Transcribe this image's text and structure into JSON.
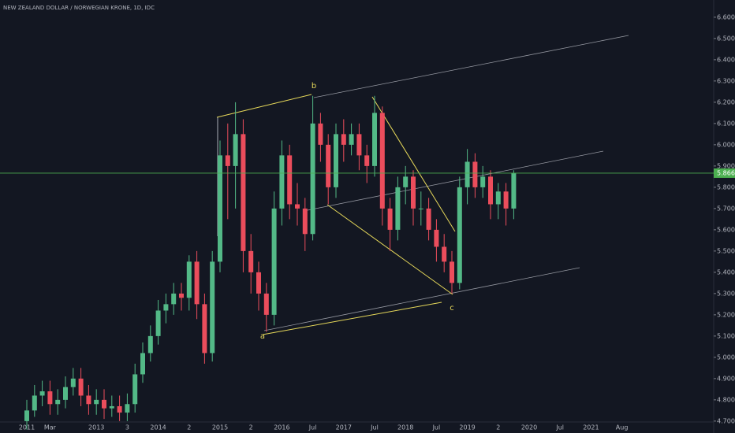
{
  "chart_data": {
    "type": "candlestick",
    "title": "NEW ZEALAND DOLLAR / NORWEGIAN KRONE, 1D, IDC",
    "annotations": [
      "a",
      "b",
      "c"
    ],
    "categories": [
      "2011",
      null,
      null,
      "Mar",
      null,
      null,
      null,
      null,
      null,
      "2013",
      null,
      null,
      null,
      "3",
      null,
      null,
      null,
      "2014",
      null,
      null,
      null,
      "2",
      null,
      null,
      null,
      "2015",
      null,
      null,
      null,
      "2",
      null,
      null,
      null,
      "2016",
      null,
      null,
      null,
      "Jul",
      null,
      null,
      null,
      "2017",
      null,
      null,
      null,
      "Jul",
      null,
      null,
      null,
      "2018",
      null,
      null,
      null,
      "Jul",
      null,
      null,
      null,
      "2019",
      null,
      null,
      null,
      "2",
      null,
      null,
      null,
      "2020",
      null,
      null,
      null,
      "Jul",
      null,
      null,
      null,
      "2021",
      null,
      null,
      null,
      "Aug"
    ],
    "open": [
      4.7,
      4.75,
      4.82,
      4.84,
      4.78,
      4.8,
      4.86,
      4.9,
      4.82,
      4.78,
      4.8,
      4.76,
      4.77,
      4.74,
      4.78,
      4.92,
      5.02,
      5.1,
      5.22,
      5.25,
      5.3,
      5.28,
      5.45,
      5.25,
      5.02,
      5.45,
      5.95,
      5.9,
      6.05,
      5.5,
      5.4,
      5.3,
      5.2,
      5.7,
      5.95,
      5.72,
      5.7,
      5.58,
      6.1,
      6.0,
      5.8,
      6.05,
      6.0,
      6.05,
      5.95,
      5.9,
      6.15,
      5.7,
      5.6,
      5.8,
      5.85,
      5.7,
      5.7,
      5.6,
      5.52,
      5.45,
      5.35,
      5.8,
      5.92,
      5.8,
      5.85,
      5.72,
      5.78,
      5.7,
      null,
      null,
      null,
      null,
      null,
      null,
      null,
      null,
      null,
      null,
      null,
      null,
      null,
      null
    ],
    "high": [
      4.8,
      4.87,
      4.89,
      4.89,
      4.85,
      4.91,
      4.95,
      4.95,
      4.87,
      4.85,
      4.85,
      4.82,
      4.82,
      4.83,
      4.97,
      5.07,
      5.15,
      5.27,
      5.3,
      5.35,
      5.35,
      5.48,
      5.5,
      5.3,
      5.5,
      6.02,
      6.1,
      6.2,
      6.12,
      5.58,
      5.45,
      5.35,
      5.78,
      6.02,
      6.0,
      5.82,
      5.75,
      6.23,
      6.15,
      6.05,
      6.1,
      6.12,
      6.1,
      6.1,
      6.0,
      6.23,
      6.18,
      5.75,
      5.85,
      5.9,
      5.88,
      5.78,
      5.75,
      5.65,
      5.58,
      5.5,
      5.85,
      5.98,
      5.96,
      5.9,
      5.88,
      5.82,
      5.82,
      5.88,
      null,
      null,
      null,
      null,
      null,
      null,
      null,
      null,
      null,
      null,
      null,
      null,
      null,
      null
    ],
    "low": [
      4.66,
      4.72,
      4.77,
      4.73,
      4.73,
      4.76,
      4.82,
      4.77,
      4.73,
      4.73,
      4.71,
      4.72,
      4.7,
      4.7,
      4.74,
      4.88,
      4.98,
      5.06,
      5.16,
      5.2,
      5.22,
      5.22,
      5.18,
      4.97,
      4.98,
      5.4,
      5.65,
      5.7,
      5.4,
      5.3,
      5.22,
      5.12,
      5.15,
      5.62,
      5.65,
      5.62,
      5.5,
      5.55,
      5.92,
      5.72,
      5.75,
      5.92,
      5.95,
      5.88,
      5.82,
      5.85,
      5.62,
      5.5,
      5.55,
      5.72,
      5.62,
      5.62,
      5.55,
      5.45,
      5.4,
      5.3,
      5.32,
      5.72,
      5.75,
      5.75,
      5.65,
      5.65,
      5.62,
      5.65,
      null,
      null,
      null,
      null,
      null,
      null,
      null,
      null,
      null,
      null,
      null,
      null,
      null,
      null
    ],
    "close": [
      4.75,
      4.82,
      4.84,
      4.78,
      4.8,
      4.86,
      4.9,
      4.82,
      4.78,
      4.8,
      4.76,
      4.77,
      4.74,
      4.78,
      4.92,
      5.02,
      5.1,
      5.22,
      5.25,
      5.3,
      5.28,
      5.45,
      5.25,
      5.02,
      5.45,
      5.95,
      5.9,
      6.05,
      5.5,
      5.4,
      5.3,
      5.2,
      5.7,
      5.95,
      5.72,
      5.7,
      5.58,
      6.1,
      6.0,
      5.8,
      6.05,
      6.0,
      6.05,
      5.95,
      5.9,
      6.15,
      5.7,
      5.6,
      5.8,
      5.85,
      5.7,
      5.7,
      5.6,
      5.52,
      5.45,
      5.35,
      5.8,
      5.92,
      5.8,
      5.85,
      5.72,
      5.78,
      5.7,
      5.8664,
      null,
      null,
      null,
      null,
      null,
      null,
      null,
      null,
      null,
      null,
      null,
      null,
      null,
      null
    ],
    "up_color": "#53b987",
    "down_color": "#eb4d5c",
    "last_price": 5.8664,
    "last_price_color": "#4caf50",
    "ylim": [
      4.681,
      6.681
    ],
    "yticks": [
      {
        "value": 4.7,
        "label": "4.7000"
      },
      {
        "value": 4.8,
        "label": "4.8000"
      },
      {
        "value": 4.9,
        "label": "4.9000"
      },
      {
        "value": 5.0,
        "label": "5.0000"
      },
      {
        "value": 5.1,
        "label": "5.1000"
      },
      {
        "value": 5.2,
        "label": "5.2000"
      },
      {
        "value": 5.3,
        "label": "5.3000"
      },
      {
        "value": 5.4,
        "label": "5.4000"
      },
      {
        "value": 5.5,
        "label": "5.5000"
      },
      {
        "value": 5.6,
        "label": "5.6000"
      },
      {
        "value": 5.7,
        "label": "5.7000"
      },
      {
        "value": 5.8,
        "label": "5.8000"
      },
      {
        "value": 5.9,
        "label": "5.9000"
      },
      {
        "value": 6.0,
        "label": "6.0000"
      },
      {
        "value": 6.1,
        "label": "6.1000"
      },
      {
        "value": 6.2,
        "label": "6.2000"
      },
      {
        "value": 6.3,
        "label": "6.3000"
      },
      {
        "value": 6.4,
        "label": "6.4000"
      },
      {
        "value": 6.5,
        "label": "6.5000"
      },
      {
        "value": 6.6,
        "label": "6.6000"
      }
    ],
    "grid": false
  }
}
